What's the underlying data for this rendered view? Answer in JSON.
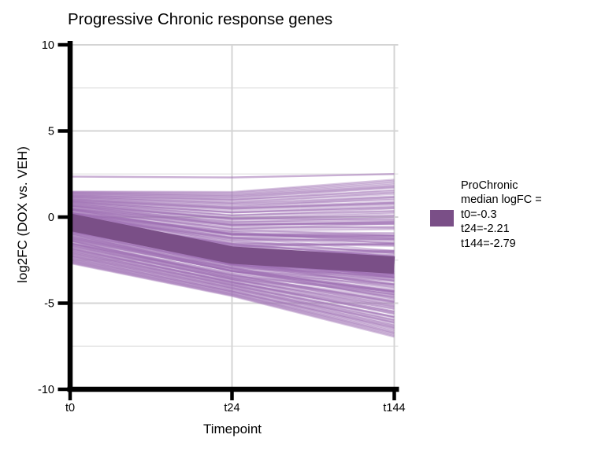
{
  "colors": {
    "line": "#9e6fb2",
    "line_alpha": 0.38,
    "median": "#7a4f87",
    "grid_major": "#d4d4d4",
    "grid_minor": "#e7e7e7",
    "axis": "#000000",
    "background": "#ffffff"
  },
  "legend": {
    "swatch_color": "#7a4f87",
    "lines": [
      "ProChronic",
      "median logFC =",
      "t0=-0.3",
      "t24=-2.21",
      "t144=-2.79"
    ]
  },
  "chart_data": {
    "type": "line",
    "title": "Progressive Chronic response genes",
    "xlabel": "Timepoint",
    "ylabel": "log2FC (DOX vs. VEH)",
    "categories": [
      "t0",
      "t24",
      "t144"
    ],
    "x_tick_labels": [
      "t0",
      "t24",
      "t144"
    ],
    "y_ticks": [
      "10",
      "5",
      "0",
      "-5",
      "-10"
    ],
    "y_tick_values": [
      10,
      5,
      0,
      -5,
      -10
    ],
    "y_minor_tick_values": [
      7.5,
      2.5,
      -2.5,
      -7.5
    ],
    "ylim": [
      -10,
      10
    ],
    "grid": true,
    "legend_position": "right",
    "series": [
      {
        "name": "ProChronic median logFC",
        "role": "median",
        "values": [
          -0.3,
          -2.21,
          -2.79
        ]
      }
    ],
    "spaghetti": {
      "description": "individual gene logFC trajectories (semi-transparent)",
      "n_lines": 230,
      "seed": 11,
      "shape_power": 1.55,
      "value_range_t0": [
        -2.7,
        2.35
      ],
      "value_range_t24": [
        -4.6,
        2.3
      ],
      "value_range_t144": [
        -7.0,
        2.5
      ],
      "upper_span": [
        1.8,
        3.7,
        5.0
      ],
      "lower_span": [
        2.4,
        2.4,
        4.2
      ],
      "noise": [
        0.3,
        1.0,
        1.2
      ],
      "top_outlier": [
        2.35,
        2.3,
        2.5
      ]
    }
  }
}
